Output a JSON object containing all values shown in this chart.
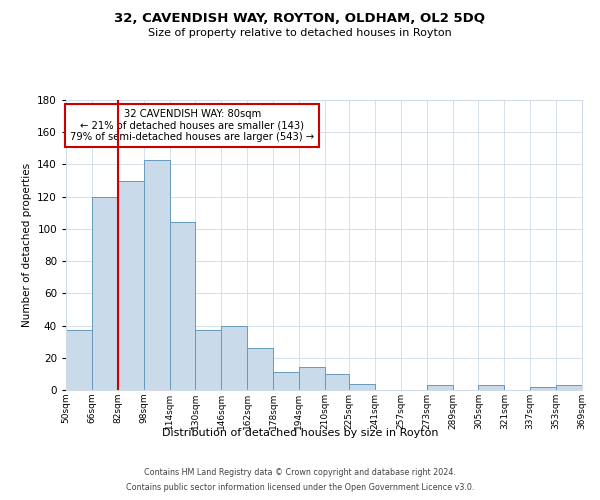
{
  "title": "32, CAVENDISH WAY, ROYTON, OLDHAM, OL2 5DQ",
  "subtitle": "Size of property relative to detached houses in Royton",
  "xlabel": "Distribution of detached houses by size in Royton",
  "ylabel": "Number of detached properties",
  "bin_edges": [
    50,
    66,
    82,
    98,
    114,
    130,
    146,
    162,
    178,
    194,
    210,
    225,
    241,
    257,
    273,
    289,
    305,
    321,
    337,
    353,
    369
  ],
  "bar_heights": [
    37,
    120,
    130,
    143,
    104,
    37,
    40,
    26,
    11,
    14,
    10,
    4,
    0,
    0,
    3,
    0,
    3,
    0,
    2,
    3
  ],
  "tick_labels": [
    "50sqm",
    "66sqm",
    "82sqm",
    "98sqm",
    "114sqm",
    "130sqm",
    "146sqm",
    "162sqm",
    "178sqm",
    "194sqm",
    "210sqm",
    "225sqm",
    "241sqm",
    "257sqm",
    "273sqm",
    "289sqm",
    "305sqm",
    "321sqm",
    "337sqm",
    "353sqm",
    "369sqm"
  ],
  "bar_facecolor": "#c9daea",
  "bar_edgecolor": "#6699bb",
  "redline_x": 82,
  "annotation_title": "32 CAVENDISH WAY: 80sqm",
  "annotation_line1": "← 21% of detached houses are smaller (143)",
  "annotation_line2": "79% of semi-detached houses are larger (543) →",
  "annotation_box_edgecolor": "#cc0000",
  "redline_color": "#cc0000",
  "ylim": [
    0,
    180
  ],
  "yticks": [
    0,
    20,
    40,
    60,
    80,
    100,
    120,
    140,
    160,
    180
  ],
  "background_color": "#ffffff",
  "grid_color": "#d0dce8",
  "footer_line1": "Contains HM Land Registry data © Crown copyright and database right 2024.",
  "footer_line2": "Contains public sector information licensed under the Open Government Licence v3.0."
}
